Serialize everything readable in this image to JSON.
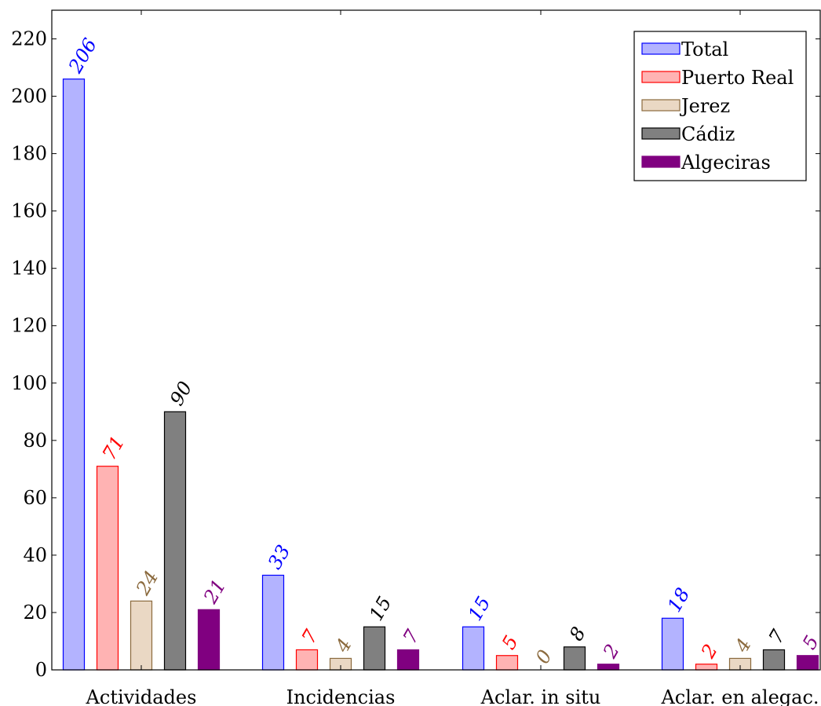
{
  "chart_data": {
    "type": "bar",
    "categories": [
      "Actividades",
      "Incidencias",
      "Aclar. in situ",
      "Aclar. en alegac."
    ],
    "series": [
      {
        "name": "Total",
        "values": [
          206,
          33,
          15,
          18
        ],
        "fill": "#b3b3ff",
        "stroke": "#0000ff",
        "label_color": "#0000ff"
      },
      {
        "name": "Puerto Real",
        "values": [
          71,
          7,
          5,
          2
        ],
        "fill": "#ffb3b3",
        "stroke": "#ff0000",
        "label_color": "#ff0000"
      },
      {
        "name": "Jerez",
        "values": [
          24,
          4,
          0,
          4
        ],
        "fill": "#ead8c4",
        "stroke": "#8b6a3e",
        "label_color": "#8b6a3e"
      },
      {
        "name": "Cádiz",
        "values": [
          90,
          15,
          8,
          7
        ],
        "fill": "#808080",
        "stroke": "#000000",
        "label_color": "#000000"
      },
      {
        "name": "Algeciras",
        "values": [
          21,
          7,
          2,
          5
        ],
        "fill": "#800080",
        "stroke": "#800080",
        "label_color": "#800080"
      }
    ],
    "ylim": [
      0,
      230
    ],
    "yticks": [
      0,
      20,
      40,
      60,
      80,
      100,
      120,
      140,
      160,
      180,
      200,
      220
    ],
    "legend_position": "top-right",
    "grid": false,
    "data_labels": "rotated"
  }
}
